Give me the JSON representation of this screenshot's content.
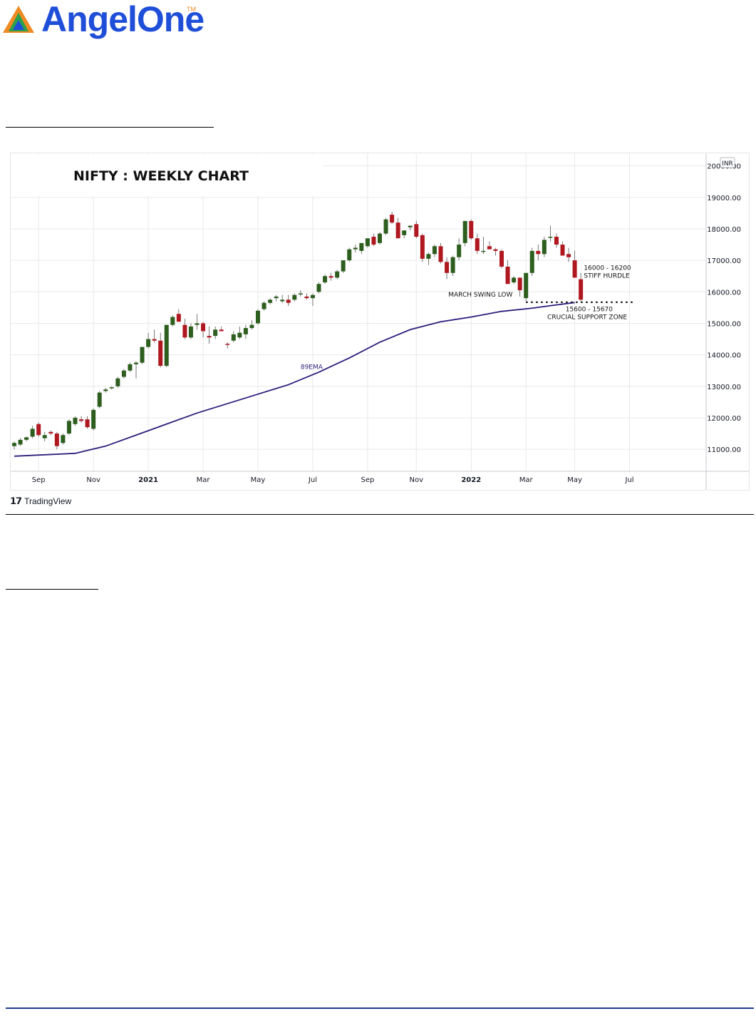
{
  "brand": {
    "name": "AngelOne",
    "tm": "TM"
  },
  "chart_data": {
    "type": "candlestick",
    "title": "NIFTY : WEEKLY CHART",
    "currency": "INR",
    "y_ticks": [
      "11000.00",
      "12000.00",
      "13000.00",
      "14000.00",
      "15000.00",
      "16000.00",
      "17000.00",
      "18000.00",
      "19000.00",
      "20000.00"
    ],
    "ylim": [
      10300,
      20400
    ],
    "x_ticks": [
      {
        "label": "Sep",
        "i": 4,
        "bold": false
      },
      {
        "label": "Nov",
        "i": 13,
        "bold": false
      },
      {
        "label": "2021",
        "i": 22,
        "bold": true
      },
      {
        "label": "Mar",
        "i": 31,
        "bold": false
      },
      {
        "label": "May",
        "i": 40,
        "bold": false
      },
      {
        "label": "Jul",
        "i": 49,
        "bold": false
      },
      {
        "label": "Sep",
        "i": 58,
        "bold": false
      },
      {
        "label": "Nov",
        "i": 66,
        "bold": false
      },
      {
        "label": "2022",
        "i": 75,
        "bold": true
      },
      {
        "label": "Mar",
        "i": 84,
        "bold": false
      },
      {
        "label": "May",
        "i": 92,
        "bold": false
      },
      {
        "label": "Jul",
        "i": 101,
        "bold": false
      }
    ],
    "candles": [
      [
        11100,
        11250,
        11000,
        11200
      ],
      [
        11150,
        11350,
        11100,
        11300
      ],
      [
        11300,
        11400,
        11250,
        11380
      ],
      [
        11400,
        11750,
        11350,
        11650
      ],
      [
        11800,
        11850,
        11400,
        11450
      ],
      [
        11350,
        11550,
        11250,
        11450
      ],
      [
        11550,
        11600,
        11450,
        11500
      ],
      [
        11500,
        11550,
        11000,
        11100
      ],
      [
        11200,
        11500,
        11150,
        11450
      ],
      [
        11500,
        11950,
        11450,
        11900
      ],
      [
        11800,
        12050,
        11750,
        12000
      ],
      [
        11950,
        12050,
        11850,
        11900
      ],
      [
        11950,
        12050,
        11650,
        11700
      ],
      [
        11650,
        12300,
        11600,
        12250
      ],
      [
        12350,
        12850,
        12300,
        12800
      ],
      [
        12850,
        12950,
        12800,
        12900
      ],
      [
        12950,
        13000,
        12900,
        12970
      ],
      [
        13000,
        13300,
        12950,
        13250
      ],
      [
        13300,
        13550,
        13250,
        13500
      ],
      [
        13500,
        13750,
        13450,
        13700
      ],
      [
        13700,
        13800,
        13250,
        13750
      ],
      [
        13750,
        14200,
        13700,
        14250
      ],
      [
        14250,
        14700,
        14200,
        14500
      ],
      [
        14500,
        14800,
        14400,
        14450
      ],
      [
        14450,
        14700,
        13600,
        13650
      ],
      [
        13650,
        14950,
        13600,
        14950
      ],
      [
        14950,
        15250,
        14900,
        15200
      ],
      [
        15300,
        15450,
        15050,
        15050
      ],
      [
        14950,
        15150,
        14500,
        14550
      ],
      [
        14550,
        15000,
        14500,
        14900
      ],
      [
        14950,
        15300,
        14800,
        15000
      ],
      [
        15000,
        15050,
        14550,
        14750
      ],
      [
        14600,
        14900,
        14350,
        14550
      ],
      [
        14600,
        14900,
        14500,
        14800
      ],
      [
        14800,
        14900,
        14750,
        14750
      ],
      [
        14350,
        14400,
        14200,
        14340
      ],
      [
        14450,
        14750,
        14400,
        14650
      ],
      [
        14550,
        14900,
        14500,
        14700
      ],
      [
        14650,
        14950,
        14500,
        14850
      ],
      [
        14850,
        15100,
        14800,
        14950
      ],
      [
        15000,
        15450,
        14950,
        15400
      ],
      [
        15450,
        15700,
        15400,
        15650
      ],
      [
        15650,
        15800,
        15600,
        15750
      ],
      [
        15800,
        15900,
        15700,
        15850
      ],
      [
        15700,
        15900,
        15650,
        15750
      ],
      [
        15750,
        15900,
        15550,
        15650
      ],
      [
        15750,
        15950,
        15700,
        15900
      ],
      [
        15950,
        16050,
        15850,
        15950
      ],
      [
        15850,
        15950,
        15750,
        15800
      ],
      [
        15800,
        15950,
        15550,
        15900
      ],
      [
        16000,
        16300,
        15950,
        16250
      ],
      [
        16300,
        16550,
        16250,
        16500
      ],
      [
        16500,
        16600,
        16350,
        16450
      ],
      [
        16450,
        16700,
        16400,
        16650
      ],
      [
        16650,
        17000,
        16600,
        17000
      ],
      [
        17000,
        17400,
        16950,
        17350
      ],
      [
        17350,
        17500,
        17250,
        17400
      ],
      [
        17300,
        17500,
        17200,
        17550
      ],
      [
        17450,
        17700,
        17400,
        17700
      ],
      [
        17750,
        17850,
        17450,
        17500
      ],
      [
        17550,
        17900,
        17500,
        17850
      ],
      [
        17850,
        18350,
        17800,
        18300
      ],
      [
        18450,
        18550,
        18150,
        18200
      ],
      [
        18200,
        18350,
        17750,
        17700
      ],
      [
        17800,
        17950,
        17700,
        17950
      ],
      [
        18050,
        18100,
        17950,
        18100
      ],
      [
        18150,
        18250,
        17700,
        17750
      ],
      [
        17800,
        17850,
        16950,
        17050
      ],
      [
        17050,
        17250,
        16850,
        17200
      ],
      [
        17200,
        17500,
        17100,
        17450
      ],
      [
        17450,
        17550,
        16900,
        16950
      ],
      [
        16950,
        17100,
        16400,
        16600
      ],
      [
        16600,
        17150,
        16500,
        17100
      ],
      [
        17100,
        17700,
        17000,
        17500
      ],
      [
        17550,
        18200,
        17450,
        18250
      ],
      [
        18250,
        18300,
        17650,
        17700
      ],
      [
        17700,
        17850,
        17200,
        17300
      ],
      [
        17300,
        17750,
        17200,
        17300
      ],
      [
        17450,
        17600,
        17350,
        17350
      ],
      [
        17350,
        17400,
        17150,
        17300
      ],
      [
        17300,
        17350,
        16750,
        16800
      ],
      [
        16800,
        17000,
        16250,
        16250
      ],
      [
        16300,
        16500,
        16250,
        16450
      ],
      [
        16450,
        16450,
        15850,
        16050
      ],
      [
        15800,
        16600,
        15700,
        16600
      ],
      [
        16600,
        17400,
        16500,
        17300
      ],
      [
        17300,
        17500,
        17000,
        17200
      ],
      [
        17200,
        17750,
        17100,
        17650
      ],
      [
        17750,
        18100,
        17600,
        17750
      ],
      [
        17750,
        17850,
        17400,
        17500
      ],
      [
        17500,
        17600,
        17150,
        17150
      ],
      [
        17200,
        17400,
        16950,
        17100
      ],
      [
        17000,
        17300,
        16500,
        16450
      ],
      [
        16400,
        16600,
        15700,
        15750
      ]
    ],
    "ema": {
      "name": "89EMA",
      "points": [
        [
          0,
          10780
        ],
        [
          10,
          10870
        ],
        [
          15,
          11100
        ],
        [
          20,
          11450
        ],
        [
          25,
          11800
        ],
        [
          30,
          12150
        ],
        [
          35,
          12450
        ],
        [
          40,
          12750
        ],
        [
          45,
          13050
        ],
        [
          50,
          13450
        ],
        [
          55,
          13900
        ],
        [
          60,
          14400
        ],
        [
          65,
          14800
        ],
        [
          70,
          15050
        ],
        [
          75,
          15200
        ],
        [
          80,
          15380
        ],
        [
          85,
          15480
        ],
        [
          88,
          15560
        ],
        [
          92,
          15660
        ]
      ]
    },
    "annotations": [
      {
        "text": "16000 - 16200",
        "i": 93.5,
        "v": 16700
      },
      {
        "text": "STIFF HURDLE",
        "i": 93.5,
        "v": 16450
      },
      {
        "text": "MARCH SWING LOW",
        "i": 81.8,
        "v": 15850
      },
      {
        "text": "15600 - 15670",
        "i": 90.5,
        "v": 15380
      },
      {
        "text": "CRUCIAL SUPPORT ZONE",
        "i": 87.5,
        "v": 15140
      },
      {
        "text": "89EMA",
        "i": 47,
        "v": 13550
      }
    ],
    "support_line": {
      "value": 15670,
      "from_i": 84,
      "to_i": 102
    },
    "colors": {
      "up": "#2d5e1e",
      "down": "#b01820",
      "ema": "#2b1f7a",
      "grid": "#e9e9ec"
    }
  },
  "footer": {
    "brand": "TradingView"
  }
}
